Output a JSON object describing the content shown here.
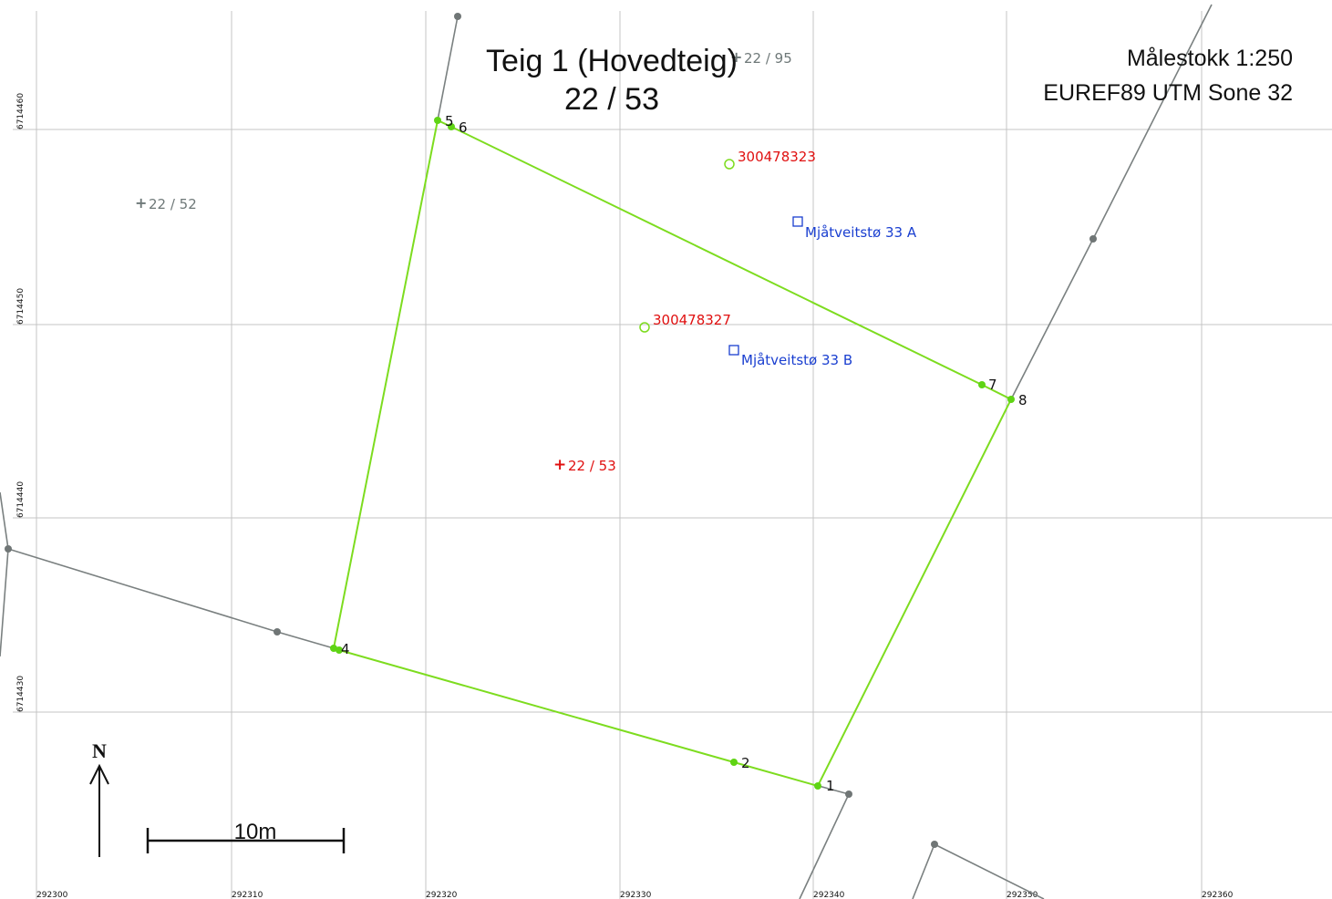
{
  "title": {
    "line1": "Teig 1 (Hovedteig)",
    "line2": "22 / 53"
  },
  "info": {
    "scale": "Målestokk 1:250",
    "projection": "EUREF89 UTM Sone 32"
  },
  "grid": {
    "x_ticks": [
      "292300",
      "292310",
      "292320",
      "292330",
      "292340",
      "292350",
      "292360"
    ],
    "y_ticks": [
      "6714460",
      "6714450",
      "6714440",
      "6714430"
    ]
  },
  "parcel_labels": {
    "main": "22 / 53",
    "west": "22 / 52",
    "north": "22 / 95"
  },
  "points": {
    "p1": "1",
    "p2": "2",
    "p4": "4",
    "p5": "5",
    "p6": "6",
    "p7": "7",
    "p8": "8"
  },
  "buildings": {
    "b1": "300478323",
    "b2": "300478327"
  },
  "addresses": {
    "a": "Mjåtveitstø 33 A",
    "b": "Mjåtveitstø 33 B"
  },
  "scalebar": {
    "label": "10m"
  },
  "north_arrow": {
    "label": "N"
  },
  "colors": {
    "boundary": "#7ddc1f",
    "neighbor_line": "#7a8080",
    "grid": "#bfbfbf",
    "building_label": "#e01010",
    "address_label": "#1a3fd0",
    "parcel_main": "#e01010",
    "parcel_other": "#6e7878"
  }
}
